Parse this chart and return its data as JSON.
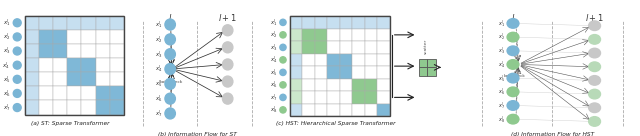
{
  "fig_width": 6.4,
  "fig_height": 1.36,
  "dpi": 100,
  "background": "#ffffff",
  "blue_light": "#c6dff0",
  "blue_medium": "#7fb8d7",
  "blue_dark": "#5a9ec8",
  "blue_node": "#7ab5d5",
  "green_light": "#cce8cc",
  "green_medium": "#8fc98f",
  "green_dark": "#7aba7a",
  "green_node": "#8ec98e",
  "gray_node": "#c8c8c8",
  "gray_line": "#999999",
  "caption_a": "(a) ST: Sparse Transformer",
  "caption_b": "(b) Information Flow for ST",
  "caption_c": "(c) HST: Hierarchical Sparse Transformer",
  "caption_d": "(d) Information Flow for HST"
}
